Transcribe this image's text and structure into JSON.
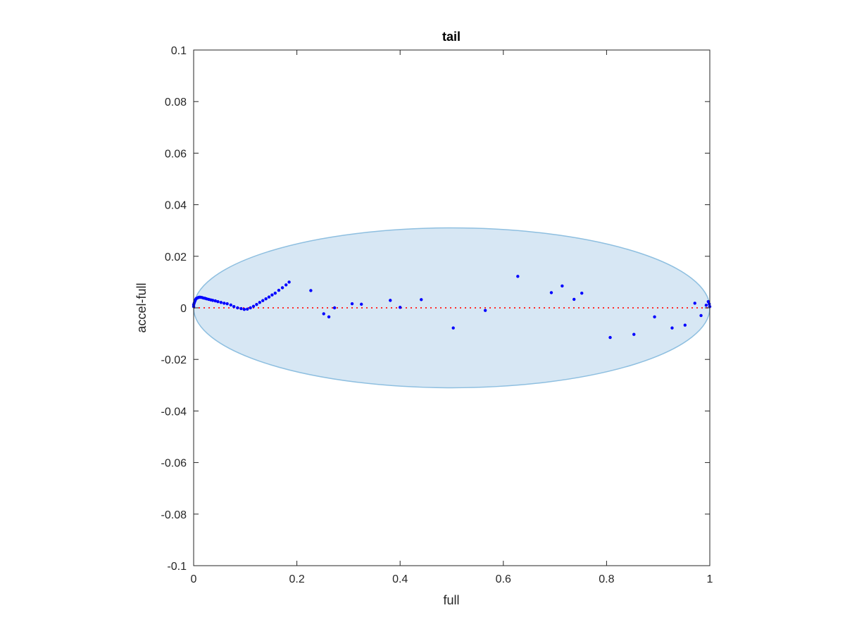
{
  "chart_data": {
    "type": "scatter",
    "title": "tail",
    "xlabel": "full",
    "ylabel": "accel-full",
    "xlim": [
      0,
      1
    ],
    "ylim": [
      -0.1,
      0.1
    ],
    "grid": false,
    "x_ticks": [
      {
        "value": 0,
        "label": "0"
      },
      {
        "value": 0.2,
        "label": "0.2"
      },
      {
        "value": 0.4,
        "label": "0.4"
      },
      {
        "value": 0.6,
        "label": "0.6"
      },
      {
        "value": 0.8,
        "label": "0.8"
      },
      {
        "value": 1,
        "label": "1"
      }
    ],
    "y_ticks": [
      {
        "value": 0.1,
        "label": "0.1"
      },
      {
        "value": 0.08,
        "label": "0.08"
      },
      {
        "value": 0.06,
        "label": "0.06"
      },
      {
        "value": 0.04,
        "label": "0.04"
      },
      {
        "value": 0.02,
        "label": "0.02"
      },
      {
        "value": 0,
        "label": "0"
      },
      {
        "value": -0.02,
        "label": "-0.02"
      },
      {
        "value": -0.04,
        "label": "-0.04"
      },
      {
        "value": -0.06,
        "label": "-0.06"
      },
      {
        "value": -0.08,
        "label": "-0.08"
      },
      {
        "value": -0.1,
        "label": "-0.1"
      }
    ],
    "ellipse": {
      "cx": 0.5,
      "cy": 0,
      "rx": 0.5,
      "ry": 0.031,
      "fill": "#d7e7f4",
      "stroke": "#8ebfe0"
    },
    "reference_line": {
      "y": 0,
      "color": "#ff2a2a",
      "style": "dotted"
    },
    "point_color": "#0000ff",
    "points": [
      [
        0.0,
        0.0005
      ],
      [
        0.0,
        0.0012
      ],
      [
        0.001,
        0.0018
      ],
      [
        0.002,
        0.0024
      ],
      [
        0.003,
        0.0029
      ],
      [
        0.004,
        0.0033
      ],
      [
        0.005,
        0.0036
      ],
      [
        0.007,
        0.0038
      ],
      [
        0.009,
        0.004
      ],
      [
        0.011,
        0.0041
      ],
      [
        0.013,
        0.0041
      ],
      [
        0.016,
        0.004
      ],
      [
        0.019,
        0.0038
      ],
      [
        0.022,
        0.0037
      ],
      [
        0.025,
        0.0035
      ],
      [
        0.029,
        0.0033
      ],
      [
        0.033,
        0.0031
      ],
      [
        0.037,
        0.0029
      ],
      [
        0.042,
        0.0027
      ],
      [
        0.047,
        0.0024
      ],
      [
        0.053,
        0.0021
      ],
      [
        0.059,
        0.0018
      ],
      [
        0.065,
        0.0016
      ],
      [
        0.072,
        0.0011
      ],
      [
        0.078,
        0.0005
      ],
      [
        0.085,
        0.0
      ],
      [
        0.092,
        -0.0003
      ],
      [
        0.098,
        -0.0006
      ],
      [
        0.104,
        -0.0005
      ],
      [
        0.11,
        0.0
      ],
      [
        0.116,
        0.0006
      ],
      [
        0.122,
        0.0013
      ],
      [
        0.128,
        0.0021
      ],
      [
        0.134,
        0.0028
      ],
      [
        0.14,
        0.0035
      ],
      [
        0.146,
        0.0042
      ],
      [
        0.152,
        0.005
      ],
      [
        0.158,
        0.0057
      ],
      [
        0.165,
        0.0068
      ],
      [
        0.172,
        0.0078
      ],
      [
        0.179,
        0.0089
      ],
      [
        0.185,
        0.01
      ],
      [
        0.227,
        0.0067
      ],
      [
        0.252,
        -0.0023
      ],
      [
        0.262,
        -0.0035
      ],
      [
        0.273,
        0.0
      ],
      [
        0.307,
        0.0016
      ],
      [
        0.325,
        0.0014
      ],
      [
        0.381,
        0.0029
      ],
      [
        0.4,
        0.0002
      ],
      [
        0.441,
        0.0032
      ],
      [
        0.503,
        -0.0078
      ],
      [
        0.565,
        -0.001
      ],
      [
        0.628,
        0.0122
      ],
      [
        0.693,
        0.0059
      ],
      [
        0.714,
        0.0085
      ],
      [
        0.737,
        0.0033
      ],
      [
        0.752,
        0.0057
      ],
      [
        0.807,
        -0.0115
      ],
      [
        0.853,
        -0.0103
      ],
      [
        0.893,
        -0.0035
      ],
      [
        0.927,
        -0.0078
      ],
      [
        0.952,
        -0.0067
      ],
      [
        0.971,
        0.0018
      ],
      [
        0.983,
        -0.003
      ],
      [
        0.993,
        0.001
      ],
      [
        0.997,
        0.0024
      ],
      [
        0.999,
        0.0015
      ],
      [
        1.0,
        0.0005
      ]
    ]
  }
}
